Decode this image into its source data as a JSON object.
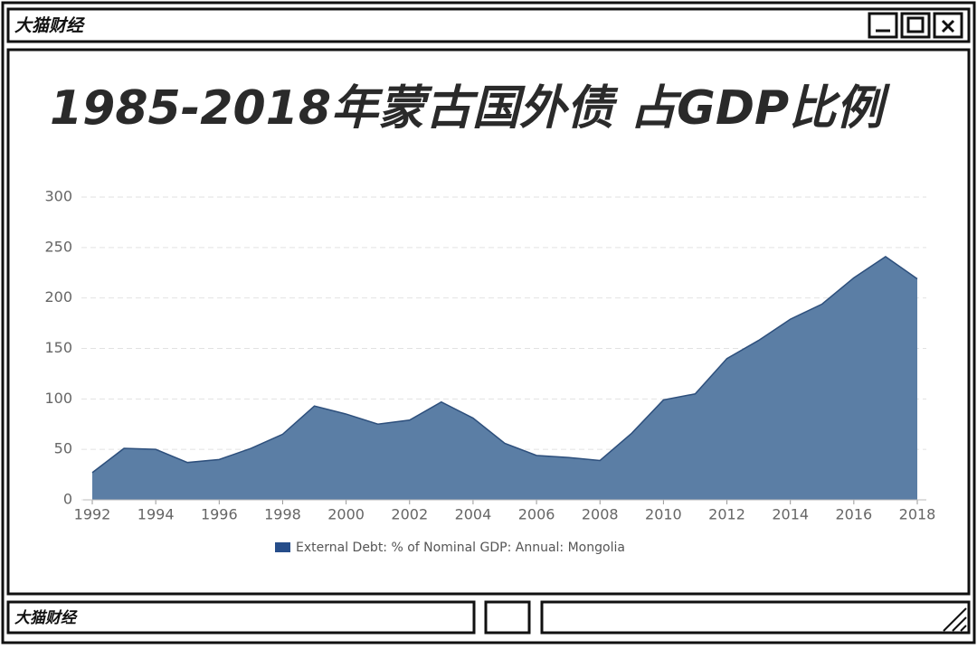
{
  "window": {
    "title": "大猫财经",
    "footer": "大猫财经"
  },
  "chart_data": {
    "type": "area",
    "title": "1985-2018年蒙古国外债 占GDP比例",
    "x": [
      1992,
      1993,
      1994,
      1995,
      1996,
      1997,
      1998,
      1999,
      2000,
      2001,
      2002,
      2003,
      2004,
      2005,
      2006,
      2007,
      2008,
      2009,
      2010,
      2011,
      2012,
      2013,
      2014,
      2015,
      2016,
      2017,
      2018
    ],
    "series": [
      {
        "name": "External Debt: % of Nominal GDP: Annual: Mongolia",
        "color": "#5b7ea5",
        "values": [
          27,
          51,
          50,
          37,
          40,
          51,
          65,
          93,
          85,
          75,
          79,
          97,
          81,
          56,
          44,
          42,
          39,
          66,
          99,
          105,
          140,
          158,
          179,
          194,
          220,
          241,
          219
        ]
      }
    ],
    "xlim": [
      1992,
      2018
    ],
    "xticks": [
      1992,
      1994,
      1996,
      1998,
      2000,
      2002,
      2004,
      2006,
      2008,
      2010,
      2012,
      2014,
      2016,
      2018
    ],
    "ylim": [
      0,
      300
    ],
    "yticks": [
      0,
      50,
      100,
      150,
      200,
      250,
      300
    ],
    "grid": true
  }
}
